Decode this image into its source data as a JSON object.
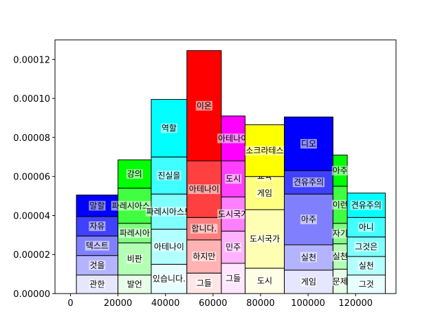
{
  "chart_data": {
    "type": "bar",
    "title": "",
    "xlabel": "",
    "ylabel": "",
    "xlim": [
      -6500,
      137000
    ],
    "ylim": [
      0,
      0.00013
    ],
    "xticks": [
      0,
      20000,
      40000,
      60000,
      80000,
      100000,
      120000
    ],
    "xtick_labels": [
      "0",
      "20000",
      "40000",
      "60000",
      "80000",
      "100000",
      "120000"
    ],
    "yticks": [
      0,
      2e-05,
      4e-05,
      6e-05,
      8e-05,
      0.0001,
      0.00012
    ],
    "ytick_labels": [
      "0.00000",
      "0.00002",
      "0.00004",
      "0.00006",
      "0.00008",
      "0.00010",
      "0.00012"
    ],
    "grid": false,
    "bars": [
      {
        "x0": 2500,
        "x1": 20000,
        "color": "#0000ff",
        "segments": [
          {
            "label": "관한",
            "top": 9.5e-06
          },
          {
            "label": "것을",
            "top": 1.95e-05
          },
          {
            "label": "텍스트",
            "top": 2.95e-05
          },
          {
            "label": "자유",
            "top": 3.95e-05
          },
          {
            "label": "말할",
            "top": 5.05e-05
          }
        ]
      },
      {
        "x0": 20000,
        "x1": 34000,
        "color": "#00ff00",
        "segments": [
          {
            "label": "발언",
            "top": 9.5e-06
          },
          {
            "label": "비판",
            "top": 2.6e-05
          },
          {
            "label": "파레시아",
            "top": 3.6e-05
          },
          {
            "label": "파레시아스트",
            "top": 5.4e-05
          },
          {
            "label": "강의",
            "top": 6.85e-05
          }
        ]
      },
      {
        "x0": 34000,
        "x1": 49000,
        "color": "#00ffff",
        "segments": [
          {
            "label": "있습니다.",
            "top": 1.5e-05
          },
          {
            "label": "아테나이",
            "top": 3.3e-05
          },
          {
            "label": "파레시아스트",
            "top": 5.1e-05
          },
          {
            "label": "진실을",
            "top": 7e-05
          },
          {
            "label": "역할",
            "top": 9.95e-05
          }
        ]
      },
      {
        "x0": 49000,
        "x1": 63500,
        "color": "#ff0000",
        "segments": [
          {
            "label": "그들",
            "top": 1.05e-05
          },
          {
            "label": "하지만",
            "top": 2.75e-05
          },
          {
            "label": "합니다.",
            "top": 3.9e-05
          },
          {
            "label": "아테나이",
            "top": 6.8e-05
          },
          {
            "label": "이온",
            "top": 0.0001245
          }
        ]
      },
      {
        "x0": 63500,
        "x1": 73500,
        "color": "#ff00ff",
        "segments": [
          {
            "label": "그들",
            "top": 1.55e-05
          },
          {
            "label": "민주",
            "top": 3.2e-05
          },
          {
            "label": "도시국가",
            "top": 4.95e-05
          },
          {
            "label": "도시",
            "top": 6.8e-05
          },
          {
            "label": "아테나이",
            "top": 9.1e-05
          }
        ]
      },
      {
        "x0": 73500,
        "x1": 90000,
        "color": "#ffff00",
        "segments": [
          {
            "label": "도시",
            "top": 1.3e-05
          },
          {
            "label": "도시국가",
            "top": 4.3e-05
          },
          {
            "label": "게임",
            "top": 6e-05
          },
          {
            "label": "교육",
            "top": 6e-05
          },
          {
            "label": "소크라테스",
            "top": 8.65e-05
          }
        ]
      },
      {
        "x0": 90000,
        "x1": 110500,
        "color": "#0000ff",
        "segments": [
          {
            "label": "게임",
            "top": 1.2e-05
          },
          {
            "label": "실천",
            "top": 2.5e-05
          },
          {
            "label": "아주",
            "top": 5.1e-05
          },
          {
            "label": "견유주의",
            "top": 6.3e-05
          },
          {
            "label": "디오",
            "top": 9.05e-05
          }
        ]
      },
      {
        "x0": 110500,
        "x1": 116500,
        "color": "#00ff00",
        "segments": [
          {
            "label": "문제",
            "top": 1.25e-05
          },
          {
            "label": "실천",
            "top": 2.55e-05
          },
          {
            "label": "자기",
            "top": 3.6e-05
          },
          {
            "label": "이런",
            "top": 5.5e-05
          },
          {
            "label": "아주",
            "top": 7.1e-05
          }
        ]
      },
      {
        "x0": 116500,
        "x1": 132500,
        "color": "#00ffff",
        "segments": [
          {
            "label": "그것",
            "top": 9.5e-06
          },
          {
            "label": "실천",
            "top": 1.9e-05
          },
          {
            "label": "그것은",
            "top": 2.9e-05
          },
          {
            "label": "아니",
            "top": 3.9e-05
          },
          {
            "label": "견유주의",
            "top": 5.15e-05
          }
        ]
      }
    ]
  }
}
